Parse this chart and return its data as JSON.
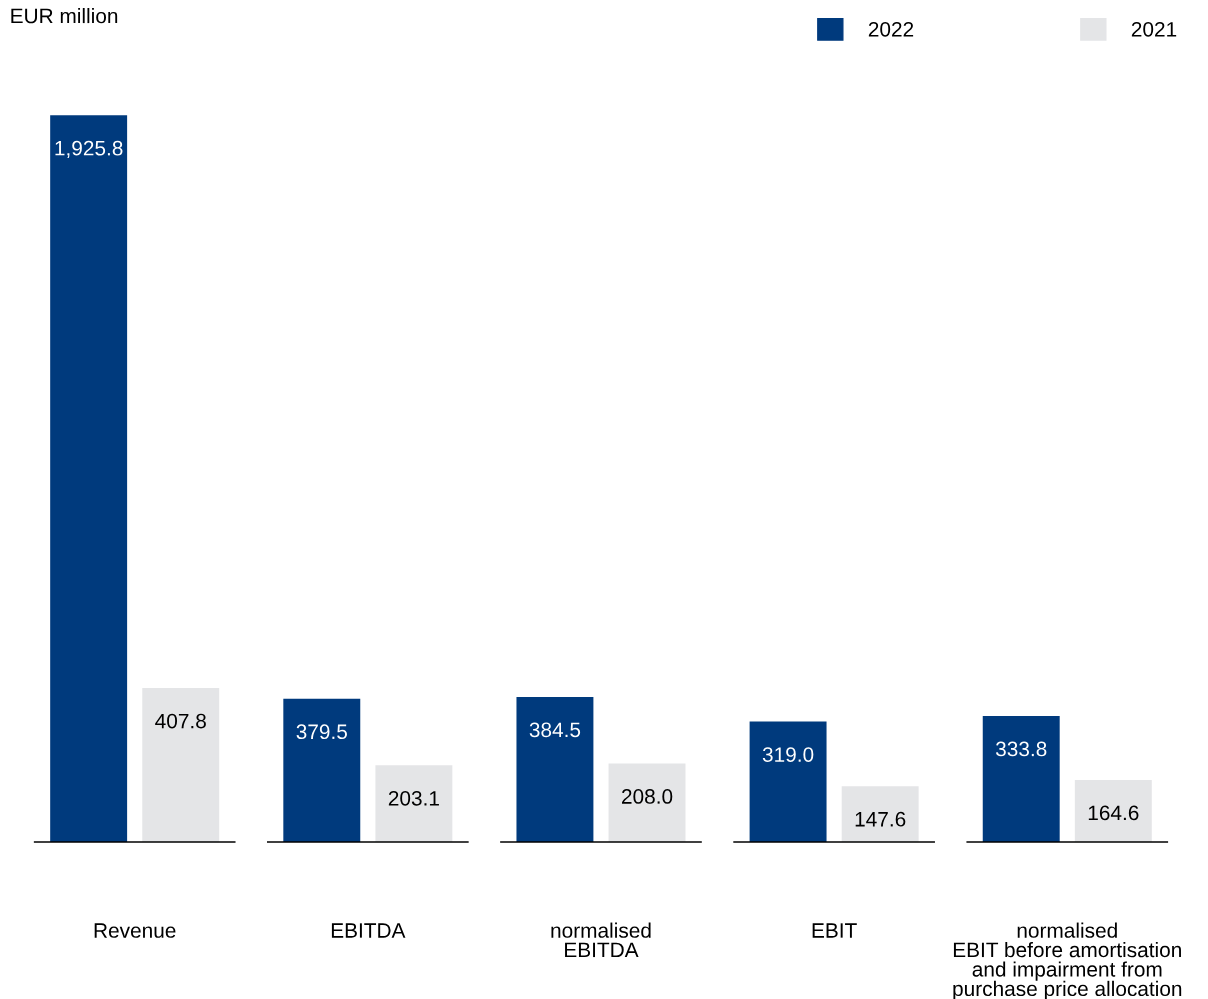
{
  "chart_data": {
    "type": "bar",
    "ylabel": "EUR million",
    "categories": [
      "Revenue",
      "EBITDA",
      "normalised\nEBITDA",
      "EBIT",
      "normalised\nEBIT before amortisation\nand impairment from\npurchase price allocation"
    ],
    "series": [
      {
        "name": "2022",
        "color": "#003a7d",
        "values": [
          1925.8,
          379.5,
          384.5,
          319.0,
          333.8
        ],
        "value_labels": [
          "1,925.8",
          "379.5",
          "384.5",
          "319.0",
          "333.8"
        ]
      },
      {
        "name": "2021",
        "color": "#e4e5e7",
        "values": [
          407.8,
          203.1,
          208.0,
          147.6,
          164.6
        ],
        "value_labels": [
          "407.8",
          "203.1",
          "208.0",
          "147.6",
          "164.6"
        ]
      }
    ],
    "legend": "top right",
    "tick_labels": "x"
  }
}
